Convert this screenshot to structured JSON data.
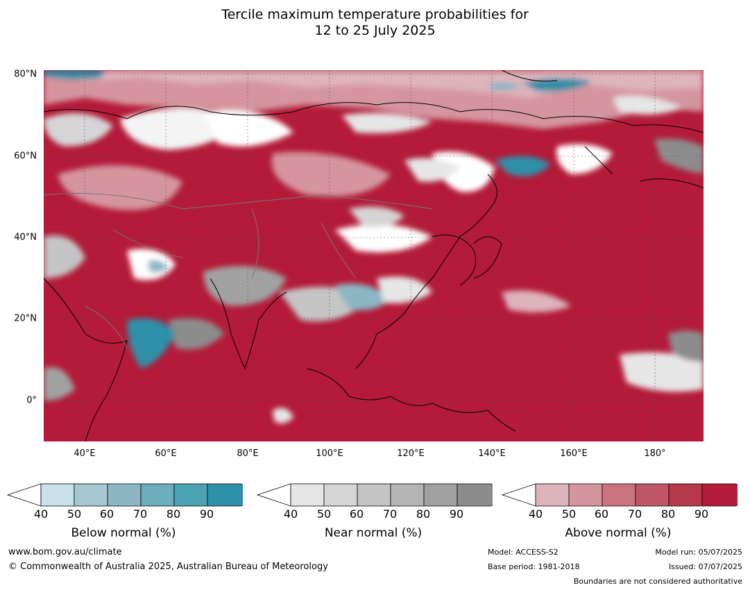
{
  "title": {
    "line1": "Tercile maximum temperature probabilities for",
    "line2": "12 to 25 July 2025"
  },
  "map": {
    "lat_labels": [
      "80°N",
      "60°N",
      "40°N",
      "20°N",
      "0°"
    ],
    "lon_labels": [
      "40°E",
      "60°E",
      "80°E",
      "100°E",
      "120°E",
      "140°E",
      "160°E",
      "180°"
    ],
    "colors": {
      "above_max": "#b31b38",
      "below_max": "#2e8fa8",
      "near_max": "#8c8c8c",
      "ocean_default": "#b31b38"
    }
  },
  "colorbars": [
    {
      "label": "Below normal (%)",
      "ticks": [
        "40",
        "50",
        "60",
        "70",
        "80",
        "90"
      ],
      "colors": [
        "#c9e1e8",
        "#a7c8d0",
        "#8bb6c3",
        "#6caeba",
        "#4ba2b1",
        "#2e8fa8"
      ]
    },
    {
      "label": "Near normal (%)",
      "ticks": [
        "40",
        "50",
        "60",
        "70",
        "80",
        "90"
      ],
      "colors": [
        "#e6e6e6",
        "#d5d5d5",
        "#c5c5c5",
        "#b4b4b4",
        "#a1a1a1",
        "#8c8c8c"
      ]
    },
    {
      "label": "Above normal (%)",
      "ticks": [
        "40",
        "50",
        "60",
        "70",
        "80",
        "90"
      ],
      "colors": [
        "#deb4bc",
        "#d5959f",
        "#ca7380",
        "#c05766",
        "#b8384c",
        "#b31b38"
      ]
    }
  ],
  "footer": {
    "website": "www.bom.gov.au/climate",
    "copyright": "© Commonwealth of Australia 2025, Australian Bureau of Meteorology",
    "model": "Model: ACCESS-S2",
    "base_period": "Base period: 1981-2018",
    "model_run": "Model run: 05/07/2025",
    "issued": "Issued: 07/07/2025",
    "disclaimer": "Boundaries are not considered authoritative"
  }
}
